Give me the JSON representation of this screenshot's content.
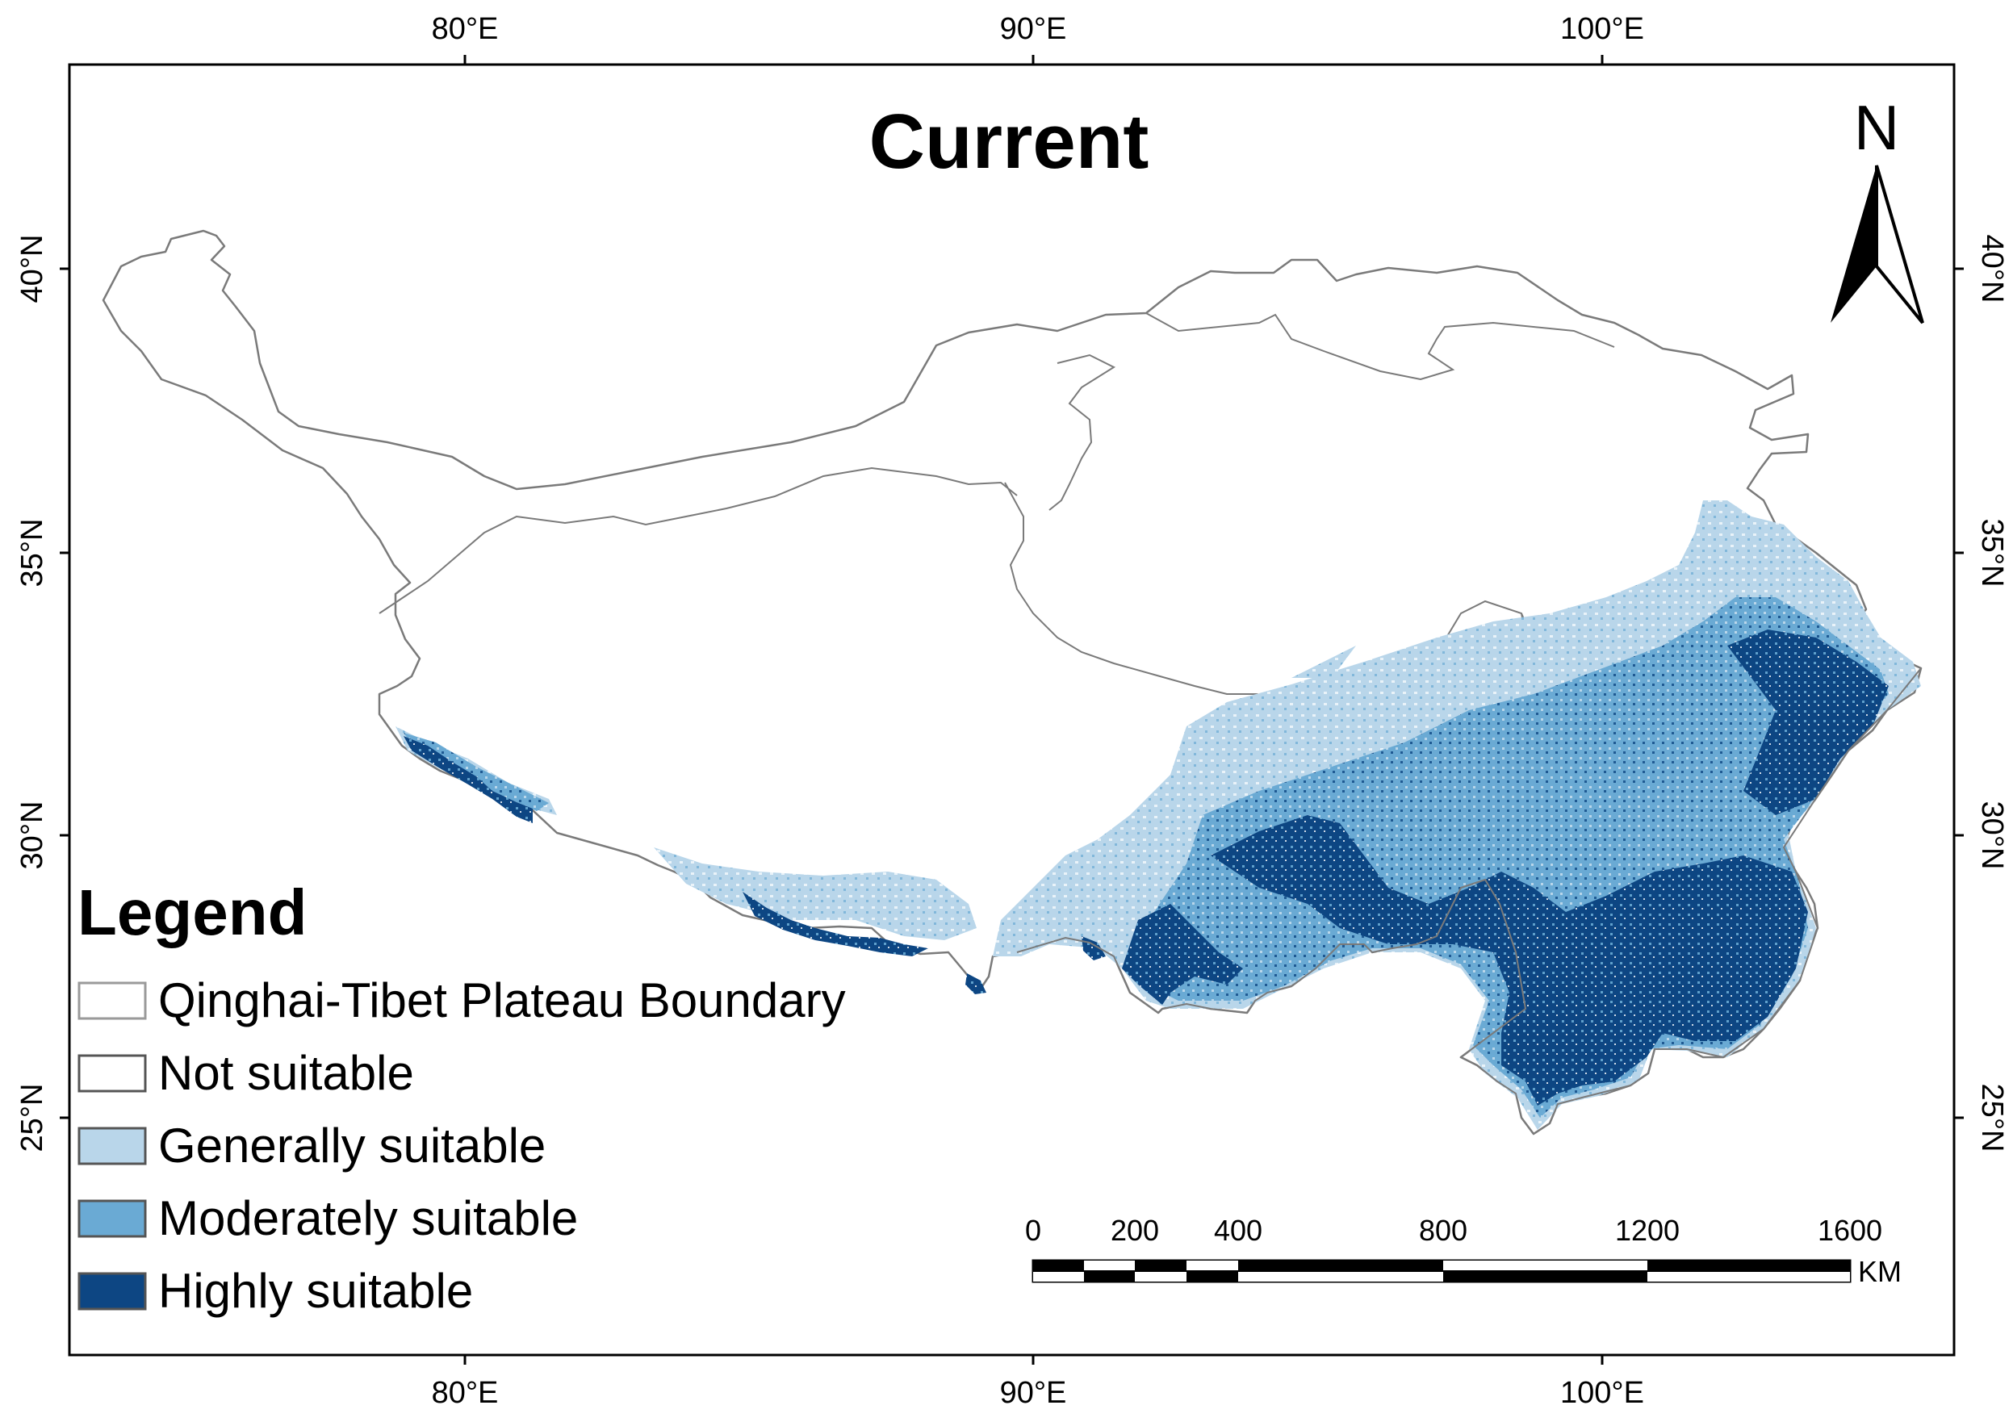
{
  "map": {
    "title": "Current",
    "longitude_ticks": [
      "80°E",
      "90°E",
      "100°E"
    ],
    "latitude_ticks": [
      "40°N",
      "35°N",
      "30°N",
      "25°N"
    ],
    "north_arrow": {
      "label": "N",
      "icon": "north-arrow-icon"
    },
    "scale_bar": {
      "labels": [
        "0",
        "200",
        "400",
        "800",
        "1200",
        "1600"
      ],
      "unit": "KM"
    }
  },
  "legend": {
    "title": "Legend",
    "items": [
      {
        "label": "Qinghai-Tibet Plateau Boundary",
        "color": "#ffffff",
        "border": "#9a9a9a"
      },
      {
        "label": "Not suitable",
        "color": "#ffffff",
        "border": "#555555"
      },
      {
        "label": "Generally suitable",
        "color": "#b9d6ea",
        "border": "#555555"
      },
      {
        "label": "Moderately suitable",
        "color": "#6aaad4",
        "border": "#555555"
      },
      {
        "label": "Highly suitable",
        "color": "#0d4683",
        "border": "#555555"
      }
    ]
  }
}
